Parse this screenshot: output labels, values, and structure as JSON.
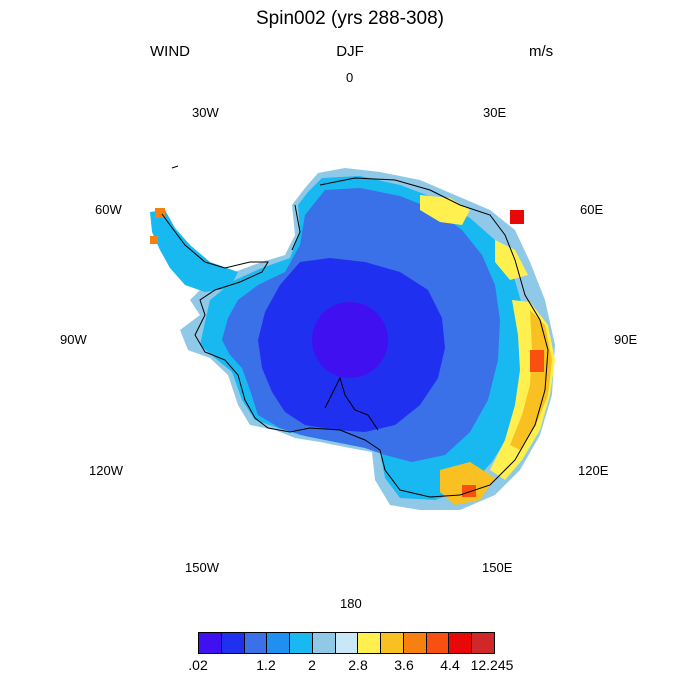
{
  "header": {
    "title": "Spin002 (yrs 288-308)",
    "left": "WIND",
    "center": "DJF",
    "right": "m/s"
  },
  "longitude_labels": [
    "0",
    "30E",
    "60E",
    "90E",
    "120E",
    "150E",
    "180",
    "150W",
    "120W",
    "90W",
    "60W",
    "30W"
  ],
  "colorbar": {
    "colors": [
      "#4010f0",
      "#2030f0",
      "#3a70e8",
      "#2090f0",
      "#18b8f0",
      "#90c8e8",
      "#c8e8f8",
      "#fff050",
      "#f8c020",
      "#f88010",
      "#f85010",
      "#e80808",
      "#d02828"
    ],
    "labels": [
      ".02",
      "1.2",
      "2",
      "2.8",
      "3.6",
      "4.4",
      "12.245"
    ]
  }
}
